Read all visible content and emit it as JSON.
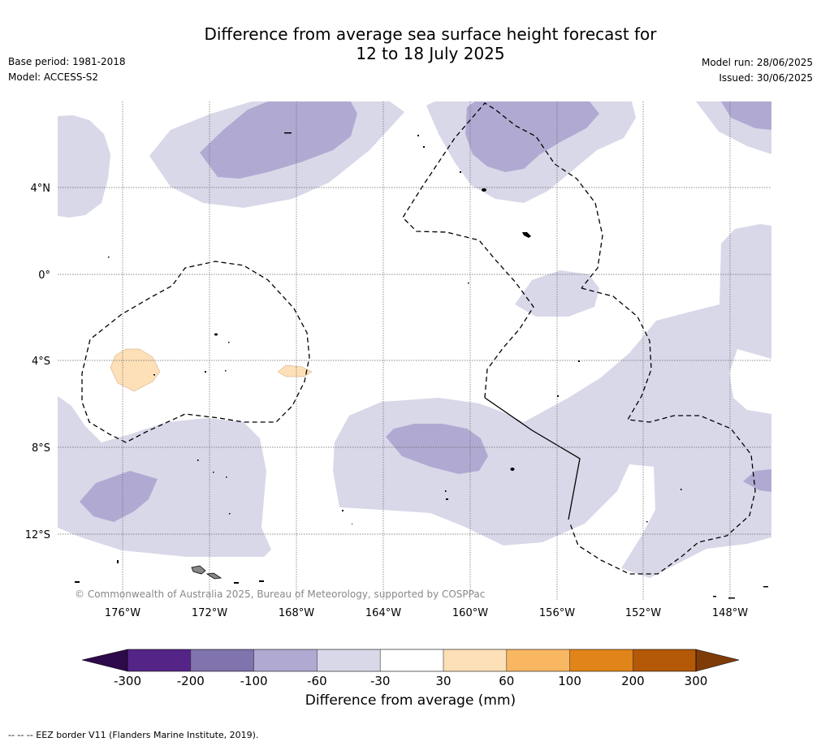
{
  "header": {
    "title_line1": "Difference from average sea surface height forecast for",
    "title_line2": "12 to 18 July 2025",
    "base_period": "Base period: 1981-2018",
    "model": "Model: ACCESS-S2",
    "model_run": "Model run: 28/06/2025",
    "issued": "Issued: 30/06/2025"
  },
  "map": {
    "longitude_labels": [
      "176°W",
      "172°W",
      "168°W",
      "164°W",
      "160°W",
      "156°W",
      "152°W",
      "148°W"
    ],
    "latitude_labels": [
      "4°N",
      "0°",
      "4°S",
      "8°S",
      "12°S"
    ],
    "copyright": "© Commonwealth of Australia 2025, Bureau of Meteorology, supported by COSPPac"
  },
  "colorbar": {
    "title": "Difference from average (mm)",
    "tick_labels": [
      "-300",
      "-200",
      "-100",
      "-60",
      "-30",
      "30",
      "60",
      "100",
      "200",
      "300"
    ],
    "colors": {
      "below_min": "#2e0a4a",
      "m300_m200": "#542487",
      "m200_m100": "#8173ad",
      "m100_m60": "#b0aad2",
      "m60_m30": "#d8d8e9",
      "m30_30": "#ffffff",
      "30_60": "#fde0b7",
      "60_100": "#fab762",
      "100_200": "#e18419",
      "200_300": "#b35907",
      "above_max": "#7f3b08"
    }
  },
  "legend": {
    "eez_note": "--  --  -- EEZ border V11 (Flanders Marine Institute, 2019)."
  }
}
